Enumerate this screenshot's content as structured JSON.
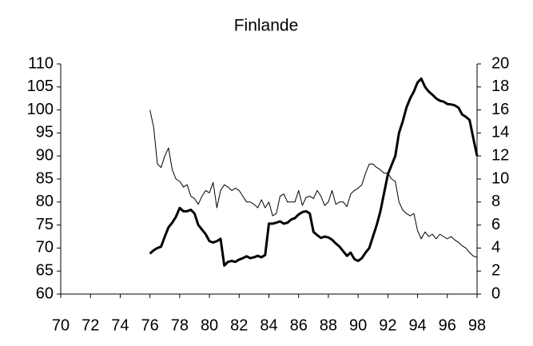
{
  "chart_data": {
    "type": "line",
    "title": "Finlande",
    "x": [
      76,
      76.25,
      76.5,
      76.75,
      77,
      77.25,
      77.5,
      77.75,
      78,
      78.25,
      78.5,
      78.75,
      79,
      79.25,
      79.5,
      79.75,
      80,
      80.25,
      80.5,
      80.75,
      81,
      81.25,
      81.5,
      81.75,
      82,
      82.25,
      82.5,
      82.75,
      83,
      83.25,
      83.5,
      83.75,
      84,
      84.25,
      84.5,
      84.75,
      85,
      85.25,
      85.5,
      85.75,
      86,
      86.25,
      86.5,
      86.75,
      87,
      87.25,
      87.5,
      87.75,
      88,
      88.25,
      88.5,
      88.75,
      89,
      89.25,
      89.5,
      89.75,
      90,
      90.25,
      90.5,
      90.75,
      91,
      91.25,
      91.5,
      91.75,
      92,
      92.25,
      92.5,
      92.75,
      93,
      93.25,
      93.5,
      93.75,
      94,
      94.25,
      94.5,
      94.75,
      95,
      95.25,
      95.5,
      95.75,
      96,
      96.25,
      96.5,
      96.75,
      97,
      97.25,
      97.5,
      97.75,
      98
    ],
    "series": [
      {
        "color": "#000000",
        "width": 3,
        "values": [
          68.8,
          69.5,
          70,
          70.3,
          72.5,
          74.5,
          75.5,
          76.8,
          78.7,
          78,
          78,
          78.3,
          77.5,
          75,
          74,
          73,
          71.5,
          71.2,
          71.5,
          72,
          66.2,
          67,
          67.2,
          67,
          67.5,
          67.8,
          68.2,
          67.8,
          68,
          68.3,
          68,
          68.5,
          75.3,
          75.3,
          75.5,
          75.8,
          75.3,
          75.5,
          76.2,
          76.5,
          77.3,
          77.8,
          78,
          77.5,
          73.5,
          72.8,
          72.2,
          72.5,
          72.3,
          71.8,
          71,
          70.3,
          69.3,
          68.3,
          69,
          67.6,
          67.2,
          67.8,
          69,
          70,
          72.5,
          75,
          78,
          82,
          86,
          88,
          90,
          95,
          97.5,
          100.5,
          102.5,
          104,
          106,
          106.8,
          105,
          104,
          103.3,
          102.5,
          102,
          101.8,
          101.3,
          101.2,
          101,
          100.5,
          99,
          98.5,
          97.8,
          93.8,
          90
        ]
      },
      {
        "color": "#000000",
        "width": 1,
        "axis": "y2",
        "values": [
          16,
          14.5,
          11.3,
          11,
          12,
          12.7,
          10.8,
          10,
          9.8,
          9.3,
          9.5,
          8.5,
          8.3,
          7.8,
          8.5,
          9,
          8.8,
          9.7,
          7.5,
          9,
          9.5,
          9.3,
          9,
          9.2,
          9,
          8.5,
          8,
          8,
          7.8,
          7.5,
          8.2,
          7.5,
          8,
          6.8,
          7,
          8.5,
          8.7,
          8,
          8,
          8,
          9,
          7.7,
          8.4,
          8.5,
          8.3,
          9,
          8.5,
          7.7,
          8,
          9,
          7.8,
          8,
          8,
          7.6,
          8.7,
          9,
          9.2,
          9.5,
          10.5,
          11.3,
          11.3,
          11,
          10.8,
          10.5,
          10.5,
          10,
          9.8,
          8,
          7.3,
          7,
          6.8,
          7,
          5.5,
          4.8,
          5.4,
          5,
          5.2,
          4.8,
          5.2,
          5,
          4.8,
          5,
          4.7,
          4.5,
          4.2,
          4,
          3.6,
          3.3,
          3.2
        ]
      }
    ],
    "xlim": [
      70,
      98
    ],
    "xticks": [
      70,
      72,
      74,
      76,
      78,
      80,
      82,
      84,
      86,
      88,
      90,
      92,
      94,
      96,
      98
    ],
    "ylim": [
      60,
      110
    ],
    "yticks": [
      60,
      65,
      70,
      75,
      80,
      85,
      90,
      95,
      100,
      105,
      110
    ],
    "y2lim": [
      0,
      20
    ],
    "y2ticks": [
      0,
      2,
      4,
      6,
      8,
      10,
      12,
      14,
      16,
      18,
      20
    ],
    "grid": false
  }
}
